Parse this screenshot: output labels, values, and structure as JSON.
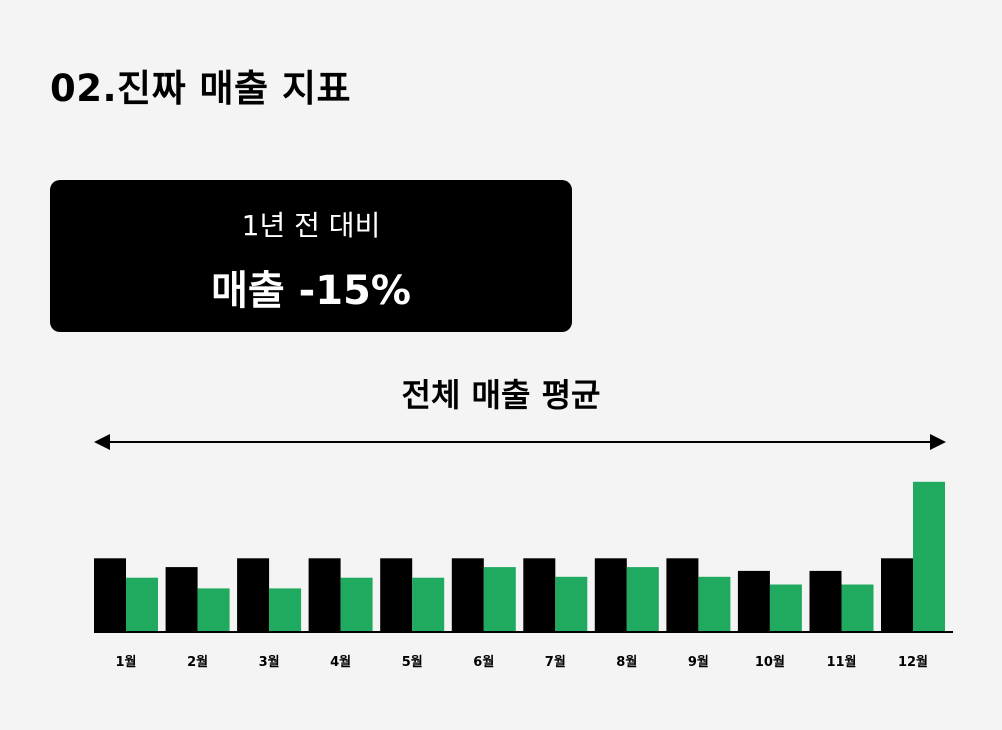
{
  "page": {
    "title": "02.진짜 매출 지표"
  },
  "callout": {
    "subtitle": "1년 전 대비",
    "headline": "매출 -15%"
  },
  "average": {
    "label": "전체 매출 평균"
  },
  "colors": {
    "background": "#f4f4f4",
    "series_black": "#000000",
    "series_green": "#1faa5f",
    "callout_bg": "#000000"
  },
  "chart_data": {
    "type": "bar",
    "categories": [
      "1월",
      "2월",
      "3월",
      "4월",
      "5월",
      "6월",
      "7월",
      "8월",
      "9월",
      "10월",
      "11월",
      "12월"
    ],
    "series": [
      {
        "values": [
          75,
          66,
          75,
          75,
          75,
          75,
          75,
          75,
          75,
          62,
          62,
          75
        ],
        "color": "#000000"
      },
      {
        "values": [
          55,
          44,
          44,
          55,
          55,
          66,
          56,
          66,
          56,
          48,
          48,
          154
        ],
        "color": "#1faa5f"
      }
    ],
    "ylim": [
      0,
      160
    ],
    "average_arrow": true,
    "grid": false,
    "y_axis_shown": false
  }
}
